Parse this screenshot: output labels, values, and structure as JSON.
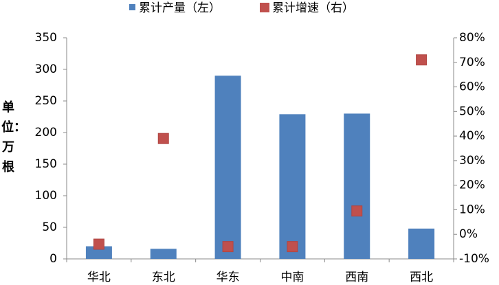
{
  "chart_data": {
    "type": "bar+scatter",
    "y_label": "单位：万根",
    "categories": [
      "华北",
      "东北",
      "华东",
      "中南",
      "西南",
      "西北"
    ],
    "series": [
      {
        "name": "累计产量（左）",
        "type": "bar",
        "color": "#4f81bd",
        "values": [
          20,
          16,
          290,
          229,
          230,
          48
        ]
      },
      {
        "name": "累计增速（右）",
        "type": "scatter",
        "axis": "y2",
        "color": "#c0504d",
        "values": [
          -4,
          39,
          -5,
          -5,
          9.5,
          71
        ]
      }
    ],
    "ylim": [
      0,
      350
    ],
    "yticks": [
      0,
      50,
      100,
      150,
      200,
      250,
      300,
      350
    ],
    "y2lim": [
      -10,
      80
    ],
    "y2ticks": [
      {
        "value": -10,
        "label": "-10%"
      },
      {
        "value": 0,
        "label": "0%"
      },
      {
        "value": 10,
        "label": "10%"
      },
      {
        "value": 20,
        "label": "20%"
      },
      {
        "value": 30,
        "label": "30%"
      },
      {
        "value": 40,
        "label": "40%"
      },
      {
        "value": 50,
        "label": "50%"
      },
      {
        "value": 60,
        "label": "60%"
      },
      {
        "value": 70,
        "label": "70%"
      },
      {
        "value": 80,
        "label": "80%"
      }
    ],
    "legend": "top"
  }
}
